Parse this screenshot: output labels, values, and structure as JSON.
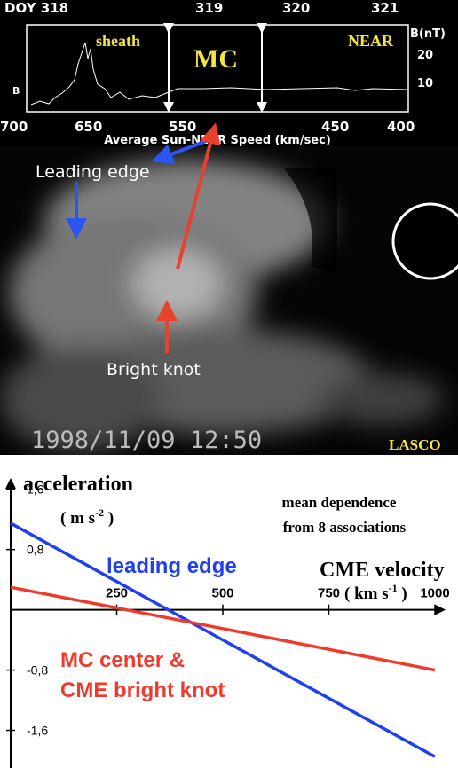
{
  "image": {
    "plot": {
      "top_labels": [
        "DOY 318",
        "319",
        "320",
        "321"
      ],
      "bottom_labels": [
        "700",
        "650",
        "550",
        "450",
        "400"
      ],
      "bottom_title": "Average Sun-NEAR Speed (km/sec)",
      "right_labels": [
        "B(nT)",
        "20",
        "10"
      ],
      "left_label": "B",
      "regions": [
        "sheath",
        "MC",
        "NEAR"
      ]
    },
    "annotations": [
      "Leading edge",
      "Bright knot"
    ],
    "timestamp": "1998/11/09 12:50",
    "instrument": "LASCO"
  },
  "chart_data": {
    "type": "line",
    "y_label": "acceleration",
    "y_unit": [
      "( m s",
      "-2",
      " )"
    ],
    "x_label": "CME velocity",
    "x_unit": [
      "( km s",
      "-1",
      " )"
    ],
    "annotation": [
      "mean dependence",
      "from 8 associations"
    ],
    "x": [
      0,
      1000
    ],
    "series": [
      {
        "name": "leading edge",
        "color": "#1f3ff0",
        "values": [
          1.15,
          -1.95
        ]
      },
      {
        "name": "MC center & CME bright knot",
        "color": "#f03a2e",
        "values": [
          0.3,
          -0.8
        ]
      }
    ],
    "xlim": [
      0,
      1000
    ],
    "ylim": [
      -2.1,
      1.75
    ],
    "xticks": [
      250,
      500,
      750,
      1000
    ],
    "yticks": [
      {
        "value": 1.6,
        "label": "1,6"
      },
      {
        "value": 0.8,
        "label": "0,8"
      },
      {
        "value": -0.8,
        "label": "-0,8"
      },
      {
        "value": -1.6,
        "label": "-1,6"
      }
    ]
  }
}
